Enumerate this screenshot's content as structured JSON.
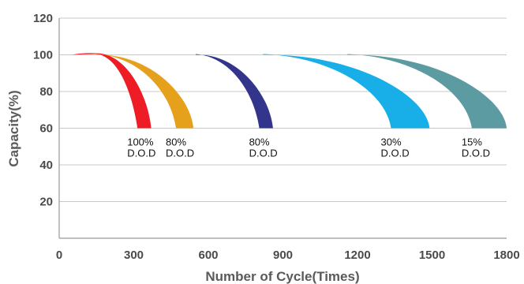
{
  "chart_data": {
    "type": "area",
    "xlabel": "Number of Cycle(Times)",
    "ylabel": "Capacity(%)",
    "xlim": [
      0,
      1800
    ],
    "ylim": [
      0,
      120
    ],
    "x_ticks": [
      0,
      300,
      600,
      900,
      1200,
      1500,
      1800
    ],
    "y_ticks": [
      20,
      40,
      60,
      80,
      100,
      120
    ],
    "grid": "horizontal",
    "series": [
      {
        "label_line1": "100%",
        "label_line2": "D.O.D",
        "color": "#ee1c25",
        "start_x": 50,
        "peak_x": 150,
        "inner_end_x": 315,
        "outer_end_x": 370
      },
      {
        "label_line1": "80%",
        "label_line2": "D.O.D",
        "color": "#e6a11c",
        "start_x": 150,
        "peak_x": 150,
        "inner_end_x": 470,
        "outer_end_x": 540
      },
      {
        "label_line1": "80%",
        "label_line2": "D.O.D",
        "color": "#33358c",
        "start_x": 550,
        "peak_x": 550,
        "inner_end_x": 805,
        "outer_end_x": 860
      },
      {
        "label_line1": "30%",
        "label_line2": "D.O.D",
        "color": "#18aee8",
        "start_x": 820,
        "peak_x": 820,
        "inner_end_x": 1335,
        "outer_end_x": 1490
      },
      {
        "label_line1": "15%",
        "label_line2": "D.O.D",
        "color": "#5d9ba3",
        "start_x": 1160,
        "peak_x": 1160,
        "inner_end_x": 1660,
        "outer_end_x": 1800
      }
    ]
  }
}
